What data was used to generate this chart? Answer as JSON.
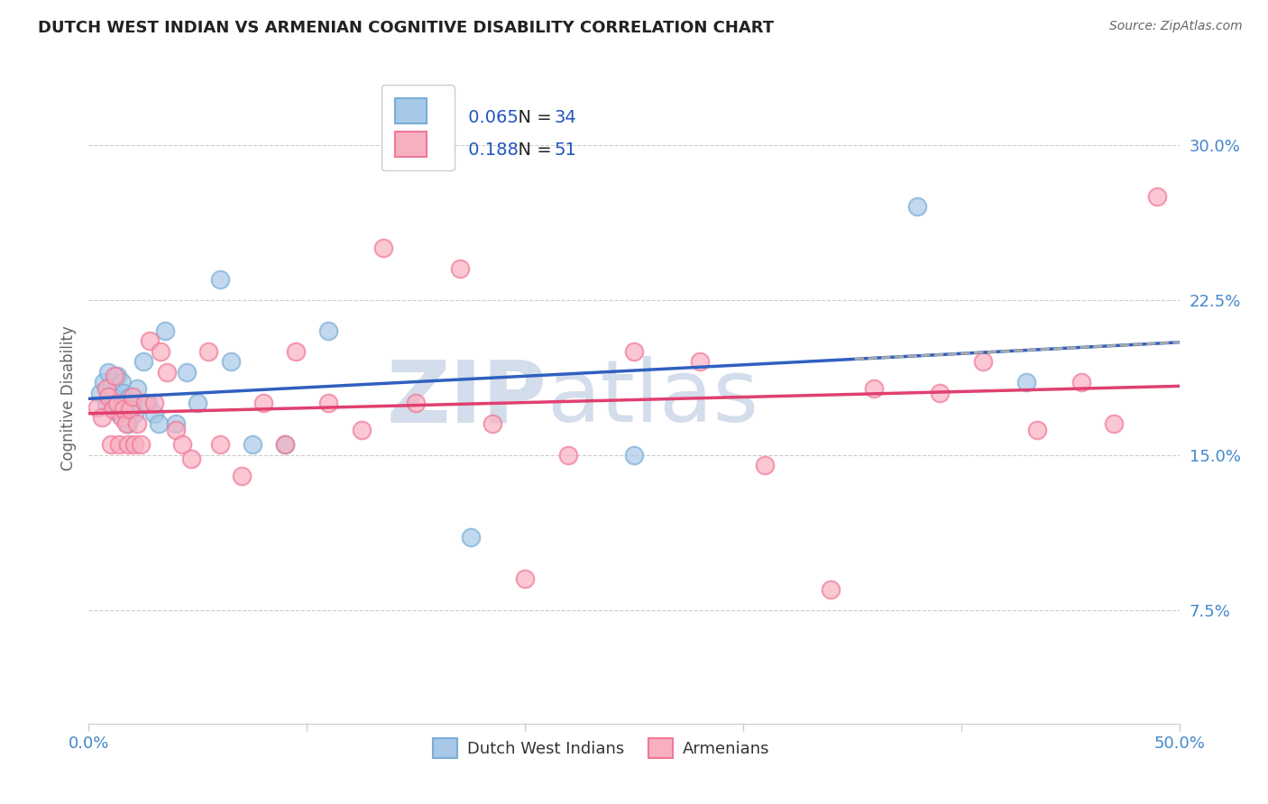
{
  "title": "DUTCH WEST INDIAN VS ARMENIAN COGNITIVE DISABILITY CORRELATION CHART",
  "source": "Source: ZipAtlas.com",
  "ylabel": "Cognitive Disability",
  "yticks": [
    0.075,
    0.15,
    0.225,
    0.3
  ],
  "ytick_labels": [
    "7.5%",
    "15.0%",
    "22.5%",
    "30.0%"
  ],
  "xmin": 0.0,
  "xmax": 0.5,
  "ymin": 0.02,
  "ymax": 0.335,
  "r_blue": 0.065,
  "n_blue": 34,
  "r_pink": 0.188,
  "n_pink": 51,
  "blue_fill": "#a8c8e8",
  "pink_fill": "#f8b0c0",
  "blue_edge": "#7aaed6",
  "pink_edge": "#f07898",
  "blue_line_color": "#3060c0",
  "pink_line_color": "#e04070",
  "dash_line_color": "#aaaaaa",
  "watermark_color": "#ccd8e8",
  "background_color": "#ffffff",
  "grid_color": "#cccccc",
  "title_color": "#222222",
  "axis_label_color": "#4488cc",
  "ylabel_color": "#666666",
  "source_color": "#666666",
  "legend_r_label_color": "#111111",
  "legend_val_color": "#2255bb",
  "dutch_west_indian_x": [
    0.005,
    0.007,
    0.008,
    0.009,
    0.01,
    0.011,
    0.012,
    0.013,
    0.014,
    0.015,
    0.016,
    0.017,
    0.018,
    0.019,
    0.02,
    0.021,
    0.022,
    0.025,
    0.027,
    0.03,
    0.032,
    0.035,
    0.04,
    0.045,
    0.05,
    0.06,
    0.065,
    0.075,
    0.09,
    0.11,
    0.175,
    0.25,
    0.38,
    0.43
  ],
  "dutch_west_indian_y": [
    0.18,
    0.185,
    0.175,
    0.19,
    0.183,
    0.178,
    0.172,
    0.188,
    0.17,
    0.185,
    0.18,
    0.175,
    0.165,
    0.178,
    0.175,
    0.17,
    0.182,
    0.195,
    0.175,
    0.17,
    0.165,
    0.21,
    0.165,
    0.19,
    0.175,
    0.235,
    0.195,
    0.155,
    0.155,
    0.21,
    0.11,
    0.15,
    0.27,
    0.185
  ],
  "armenian_x": [
    0.004,
    0.006,
    0.008,
    0.009,
    0.01,
    0.011,
    0.012,
    0.013,
    0.014,
    0.015,
    0.016,
    0.017,
    0.018,
    0.019,
    0.02,
    0.021,
    0.022,
    0.024,
    0.026,
    0.028,
    0.03,
    0.033,
    0.036,
    0.04,
    0.043,
    0.047,
    0.055,
    0.06,
    0.07,
    0.08,
    0.09,
    0.095,
    0.11,
    0.125,
    0.135,
    0.15,
    0.17,
    0.185,
    0.2,
    0.22,
    0.25,
    0.28,
    0.31,
    0.34,
    0.36,
    0.39,
    0.41,
    0.435,
    0.455,
    0.47,
    0.49
  ],
  "armenian_y": [
    0.173,
    0.168,
    0.182,
    0.178,
    0.155,
    0.172,
    0.188,
    0.175,
    0.155,
    0.168,
    0.172,
    0.165,
    0.155,
    0.172,
    0.178,
    0.155,
    0.165,
    0.155,
    0.175,
    0.205,
    0.175,
    0.2,
    0.19,
    0.162,
    0.155,
    0.148,
    0.2,
    0.155,
    0.14,
    0.175,
    0.155,
    0.2,
    0.175,
    0.162,
    0.25,
    0.175,
    0.24,
    0.165,
    0.09,
    0.15,
    0.2,
    0.195,
    0.145,
    0.085,
    0.182,
    0.18,
    0.195,
    0.162,
    0.185,
    0.165,
    0.275
  ]
}
